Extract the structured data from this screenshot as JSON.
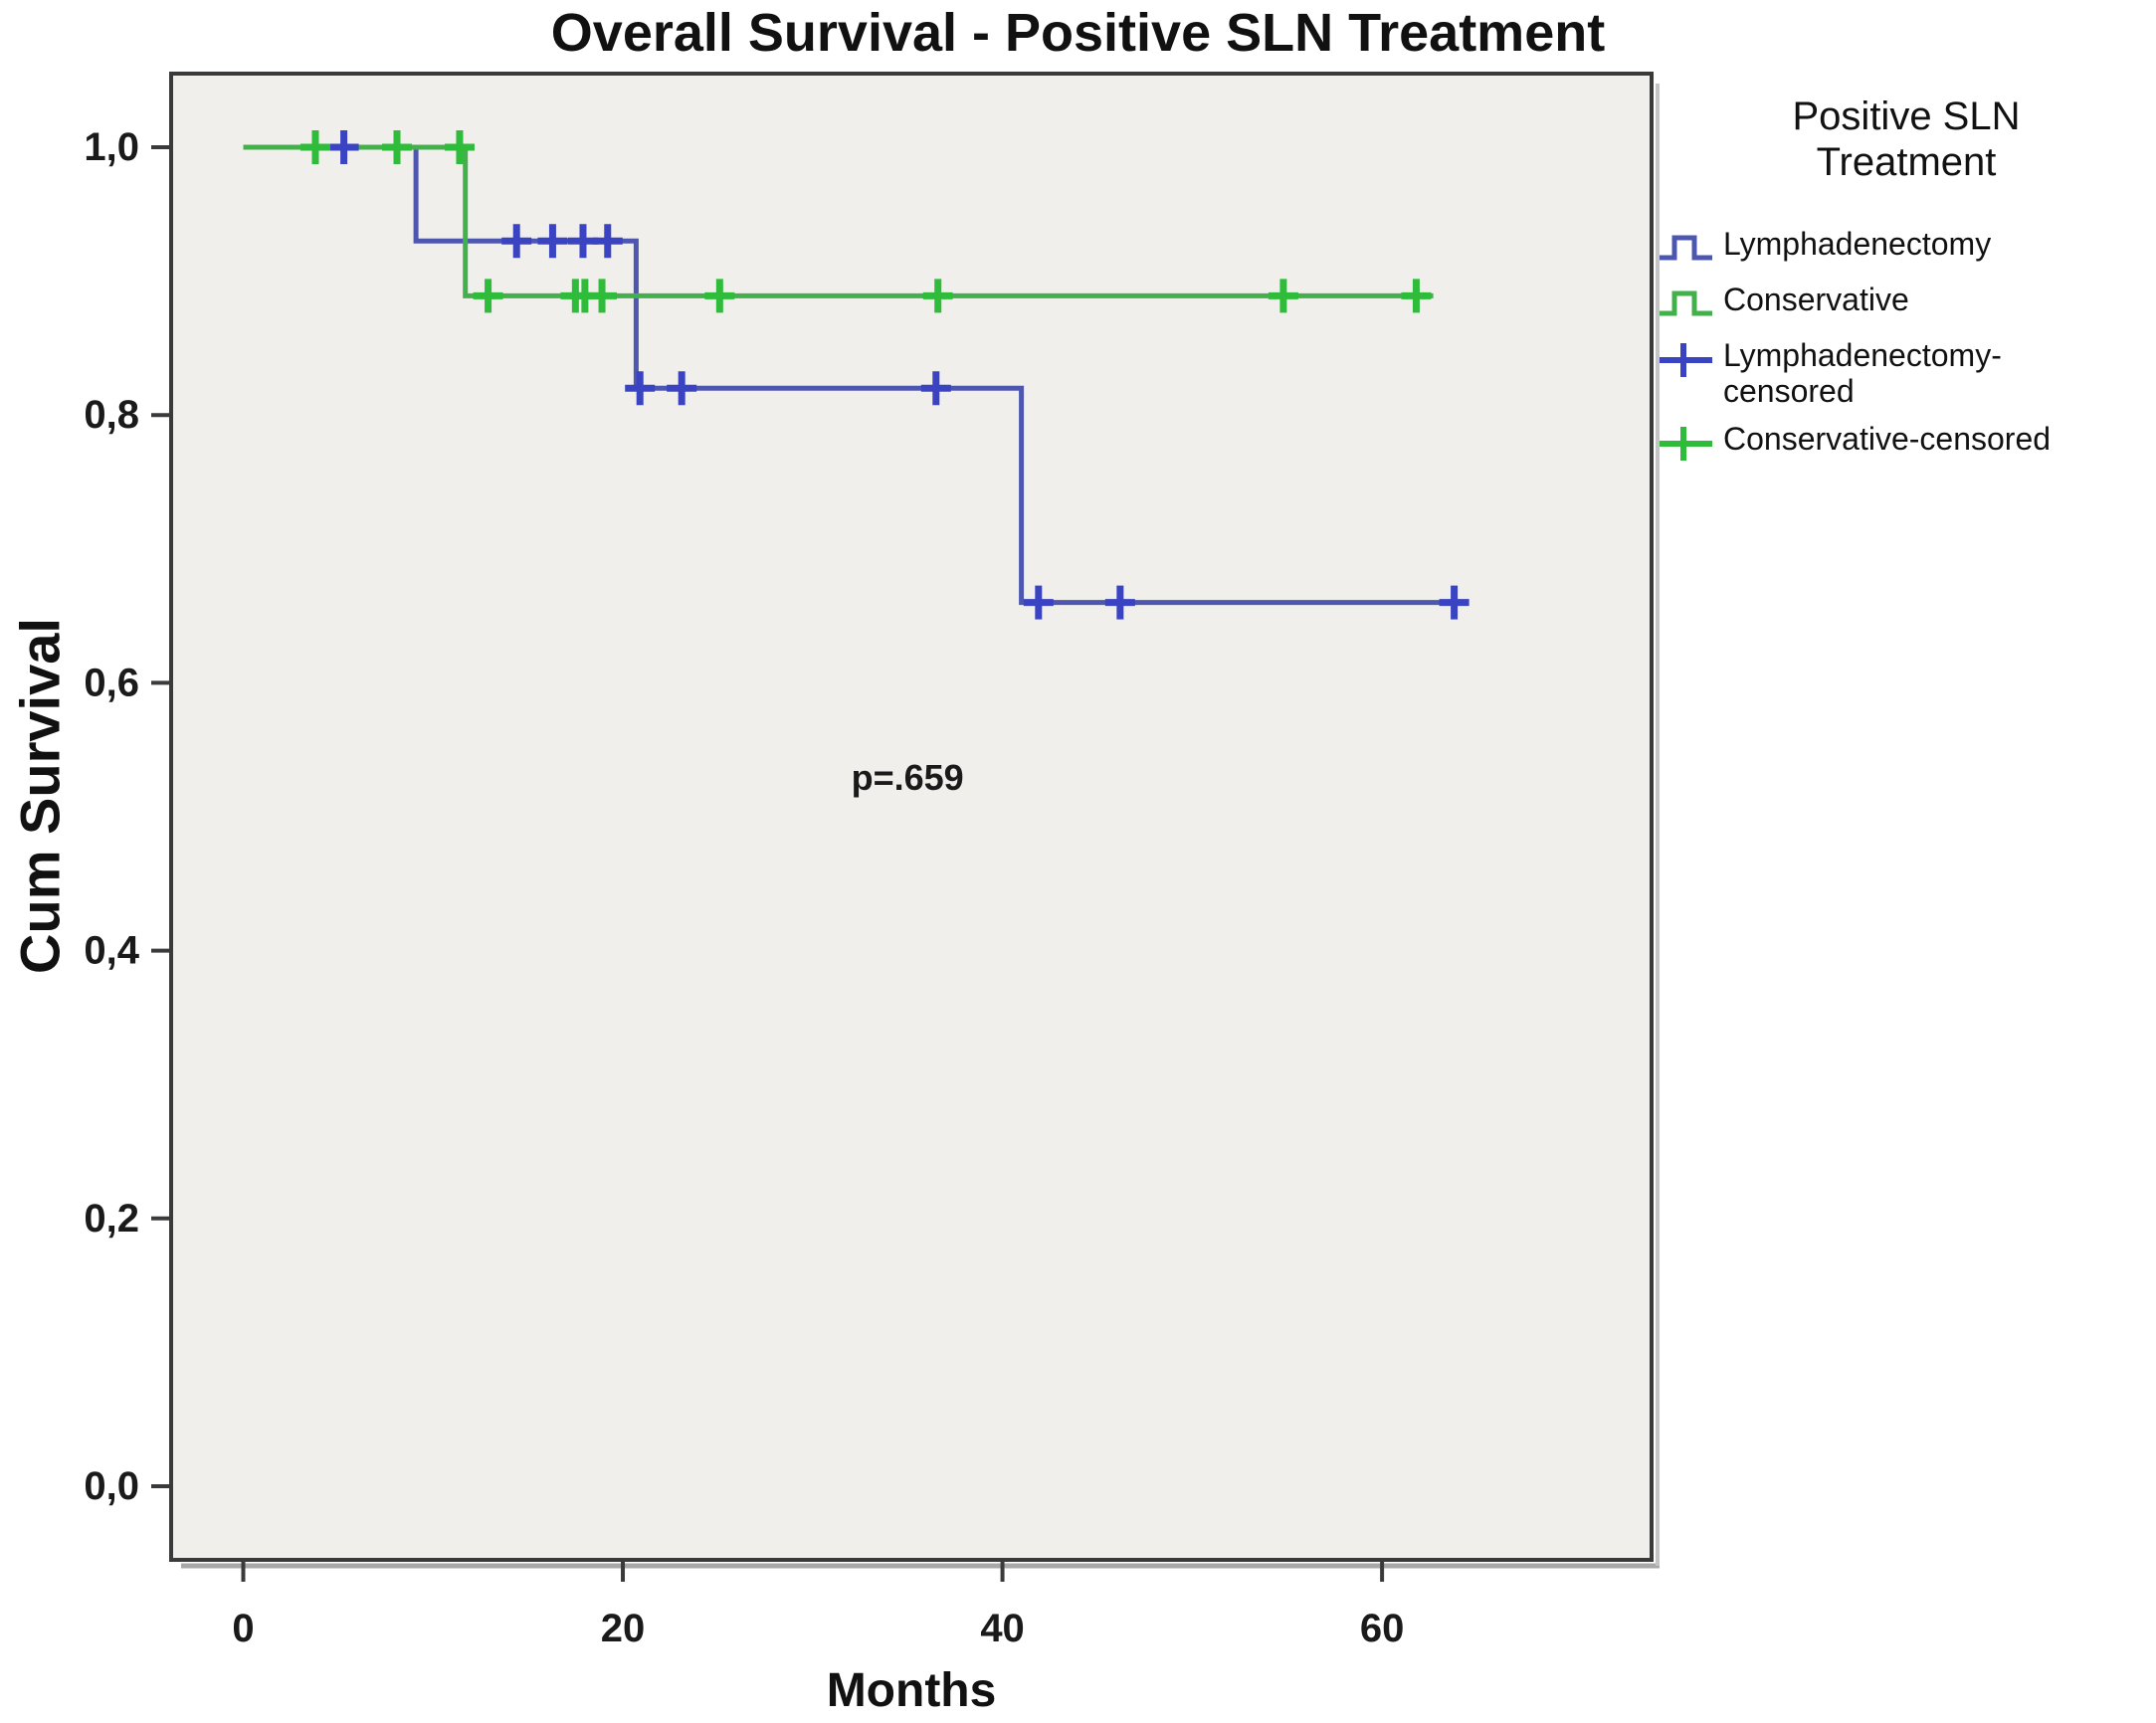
{
  "title": "Overall Survival - Positive SLN Treatment",
  "chart_data": {
    "type": "line",
    "subtype": "kaplan-meier-step",
    "title": "Overall Survival - Positive SLN Treatment",
    "xlabel": "Months",
    "ylabel": "Cum Survival",
    "xlim": [
      -3.8,
      74.2
    ],
    "ylim": [
      -0.055,
      1.055
    ],
    "x_ticks": [
      0,
      20,
      40,
      60
    ],
    "x_tick_labels": [
      "0",
      "20",
      "40",
      "60"
    ],
    "y_ticks": [
      1.0,
      0.8,
      0.6,
      0.4,
      0.2,
      0.0
    ],
    "y_tick_labels": [
      "1,0",
      "0,8",
      "0,6",
      "0,4",
      "0,2",
      "0,0"
    ],
    "grid": false,
    "plot_bg": "#f0efec",
    "frame_color": "#3a3a3a",
    "annotation": {
      "text": "p=.659",
      "x": 35,
      "y": 0.52
    },
    "legend": {
      "title": "Positive SLN Treatment",
      "position": "right",
      "entries": [
        {
          "label": "Lymphadenectomy",
          "swatch": "step",
          "color": "#4d57b0"
        },
        {
          "label": "Conservative",
          "swatch": "step",
          "color": "#43b14b"
        },
        {
          "label": "Lymphadenectomy-censored",
          "swatch": "plus",
          "color": "#3a43c2"
        },
        {
          "label": "Conservative-censored",
          "swatch": "plus",
          "color": "#2ebc3a"
        }
      ]
    },
    "series": [
      {
        "name": "Lymphadenectomy",
        "color": "#4d57b0",
        "marker_color": "#3a43c2",
        "steps": [
          [
            0,
            1.0
          ],
          [
            9.1,
            1.0
          ],
          [
            9.1,
            0.93
          ],
          [
            20.7,
            0.93
          ],
          [
            20.7,
            0.82
          ],
          [
            41,
            0.82
          ],
          [
            41,
            0.66
          ],
          [
            64.5,
            0.66
          ]
        ],
        "censored": [
          [
            5.3,
            1.0
          ],
          [
            14.4,
            0.93
          ],
          [
            16.3,
            0.93
          ],
          [
            17.9,
            0.93
          ],
          [
            19.2,
            0.93
          ],
          [
            20.9,
            0.82
          ],
          [
            23.1,
            0.82
          ],
          [
            36.5,
            0.82
          ],
          [
            41.9,
            0.66
          ],
          [
            46.2,
            0.66
          ],
          [
            63.8,
            0.66
          ]
        ]
      },
      {
        "name": "Conservative",
        "color": "#43b14b",
        "marker_color": "#2ebc3a",
        "steps": [
          [
            0,
            1.0
          ],
          [
            11.7,
            1.0
          ],
          [
            11.7,
            0.889
          ],
          [
            62.7,
            0.889
          ]
        ],
        "censored": [
          [
            3.8,
            1.0
          ],
          [
            8.1,
            1.0
          ],
          [
            11.4,
            1.0
          ],
          [
            12.9,
            0.889
          ],
          [
            17.5,
            0.889
          ],
          [
            18.0,
            0.889
          ],
          [
            18.9,
            0.889
          ],
          [
            25.1,
            0.889
          ],
          [
            36.6,
            0.889
          ],
          [
            54.8,
            0.889
          ],
          [
            61.8,
            0.889
          ]
        ]
      }
    ]
  }
}
